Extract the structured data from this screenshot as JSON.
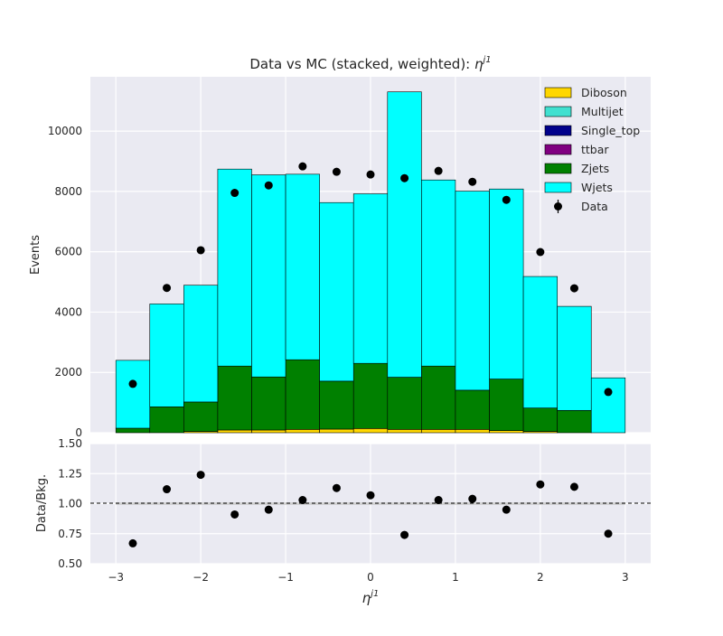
{
  "chart_data": [
    {
      "type": "bar",
      "subtype": "stacked-histogram-with-data-points",
      "title_text": "Data vs MC (stacked, weighted): ",
      "title_symbol": "η",
      "title_superscript": "j1",
      "xlabel_symbol": "η",
      "xlabel_superscript": "j1",
      "ylabel": "Events",
      "bin_edges": [
        -3.0,
        -2.6,
        -2.2,
        -1.8,
        -1.4,
        -1.0,
        -0.6,
        -0.2,
        0.2,
        0.6,
        1.0,
        1.4,
        1.8,
        2.2,
        2.6,
        3.0
      ],
      "xlim": [
        -3.3,
        3.3
      ],
      "ylim": [
        0,
        11800
      ],
      "xticks": [
        -3,
        -2,
        -1,
        0,
        1,
        2,
        3
      ],
      "xtick_labels": [
        "−3",
        "−2",
        "−1",
        "0",
        "1",
        "2",
        "3"
      ],
      "yticks": [
        0,
        2000,
        4000,
        6000,
        8000,
        10000
      ],
      "ytick_labels": [
        "0",
        "2000",
        "4000",
        "6000",
        "8000",
        "10000"
      ],
      "grid": true,
      "legend_position": "top-right",
      "series": [
        {
          "name": "Diboson",
          "color": "#FFD700",
          "values": [
            0,
            0,
            40,
            90,
            90,
            110,
            120,
            140,
            110,
            110,
            110,
            70,
            40,
            0,
            0
          ]
        },
        {
          "name": "Multijet",
          "color": "#40E0D0",
          "values": [
            0,
            0,
            0,
            0,
            0,
            0,
            0,
            0,
            0,
            0,
            0,
            0,
            0,
            0,
            0
          ]
        },
        {
          "name": "Single_top",
          "color": "#00008B",
          "values": [
            0,
            0,
            0,
            0,
            0,
            0,
            0,
            0,
            0,
            0,
            0,
            0,
            0,
            0,
            0
          ]
        },
        {
          "name": "ttbar",
          "color": "#800080",
          "values": [
            0,
            0,
            0,
            0,
            0,
            0,
            0,
            0,
            0,
            0,
            0,
            0,
            0,
            0,
            0
          ]
        },
        {
          "name": "Zjets",
          "color": "#008000",
          "values": [
            150,
            860,
            980,
            2120,
            1760,
            2310,
            1590,
            2160,
            1730,
            2100,
            1300,
            1710,
            780,
            740,
            0
          ]
        },
        {
          "name": "Wjets",
          "color": "#00FFFF",
          "values": [
            2250,
            3410,
            3870,
            6530,
            6700,
            6150,
            5920,
            5620,
            9460,
            6170,
            6600,
            6300,
            4360,
            3450,
            1820
          ]
        }
      ],
      "data_series": {
        "name": "Data",
        "color": "#000000",
        "x": [
          -2.8,
          -2.4,
          -2.0,
          -1.6,
          -1.2,
          -0.8,
          -0.4,
          0.0,
          0.4,
          0.8,
          1.2,
          1.6,
          2.0,
          2.4,
          2.8
        ],
        "values": [
          1620,
          4800,
          6050,
          7950,
          8200,
          8830,
          8650,
          8560,
          8440,
          8680,
          8320,
          7720,
          5990,
          4790,
          1350
        ]
      }
    },
    {
      "type": "scatter",
      "subtype": "ratio-panel",
      "ylabel": "Data/Bkg.",
      "xlim": [
        -3.3,
        3.3
      ],
      "ylim": [
        0.5,
        1.5
      ],
      "yticks": [
        0.5,
        0.75,
        1.0,
        1.25,
        1.5
      ],
      "ytick_labels": [
        "0.50",
        "0.75",
        "1.00",
        "1.25",
        "1.50"
      ],
      "reference_line": 1.0,
      "grid": true,
      "x": [
        -2.8,
        -2.4,
        -2.0,
        -1.6,
        -1.2,
        -0.8,
        -0.4,
        0.0,
        0.4,
        0.8,
        1.2,
        1.6,
        2.0,
        2.4,
        2.8
      ],
      "values": [
        0.67,
        1.12,
        1.24,
        0.91,
        0.95,
        1.03,
        1.13,
        1.07,
        0.74,
        1.03,
        1.04,
        0.95,
        1.16,
        1.14,
        0.75
      ]
    }
  ],
  "legend": {
    "entries": [
      "Diboson",
      "Multijet",
      "Single_top",
      "ttbar",
      "Zjets",
      "Wjets",
      "Data"
    ]
  }
}
